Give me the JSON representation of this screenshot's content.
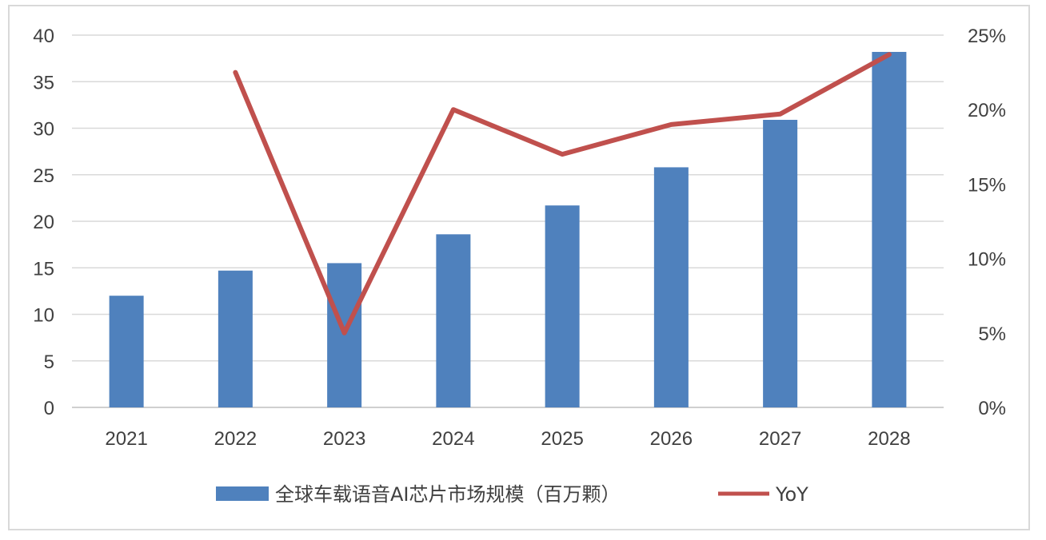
{
  "chart_data": {
    "type": "bar",
    "categories": [
      "2021",
      "2022",
      "2023",
      "2024",
      "2025",
      "2026",
      "2027",
      "2028"
    ],
    "series": [
      {
        "name": "全球车载语音AI芯片市场规模（百万颗）",
        "type": "bar",
        "axis": "left",
        "color": "#4f81bd",
        "values": [
          12.0,
          14.7,
          15.5,
          18.6,
          21.7,
          25.8,
          30.9,
          38.2
        ]
      },
      {
        "name": "YoY",
        "type": "line",
        "axis": "right",
        "color": "#c0504d",
        "values": [
          null,
          0.225,
          0.05,
          0.2,
          0.17,
          0.19,
          0.197,
          0.237
        ]
      }
    ],
    "y_left": {
      "min": 0,
      "max": 40,
      "ticks": [
        "0",
        "5",
        "10",
        "15",
        "20",
        "25",
        "30",
        "35",
        "40"
      ]
    },
    "y_right": {
      "min": 0,
      "max": 0.25,
      "ticks": [
        "0%",
        "5%",
        "10%",
        "15%",
        "20%",
        "25%"
      ]
    },
    "grid": true,
    "legend": "bottom"
  }
}
